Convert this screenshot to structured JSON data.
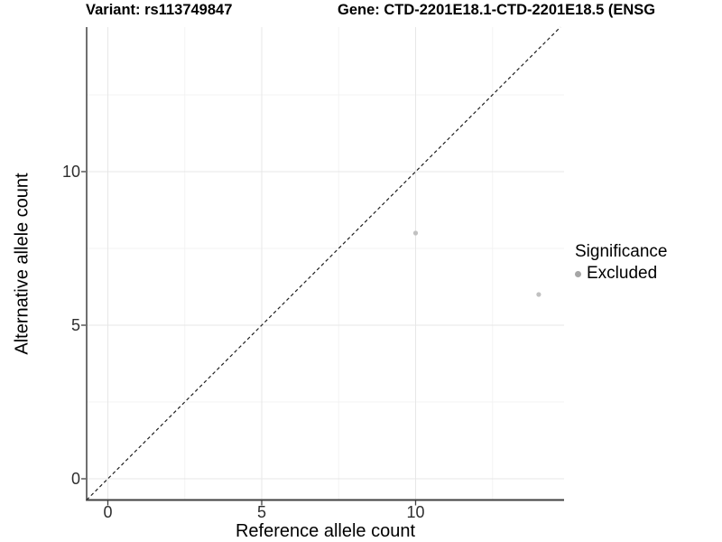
{
  "chart_data": {
    "type": "scatter",
    "title_left": "Variant: rs113749847",
    "title_right": "Gene: CTD-2201E18.1-CTD-2201E18.5 (ENSG",
    "xlabel": "Reference allele count",
    "ylabel": "Alternative allele count",
    "x_ticks": [
      0,
      5,
      10
    ],
    "y_ticks": [
      0,
      5,
      10
    ],
    "xlim": [
      -0.7,
      14.85
    ],
    "ylim": [
      -0.7,
      14.7
    ],
    "grid": {
      "on": true,
      "major": [
        0,
        5,
        10
      ],
      "minor": [
        2.5,
        7.5,
        12.5
      ]
    },
    "reference_line": {
      "type": "identity",
      "slope": 1,
      "intercept": 0,
      "style": "dashed"
    },
    "legend_position": "right",
    "series": [
      {
        "name": "Excluded",
        "points": [
          {
            "x": 10,
            "y": 8
          },
          {
            "x": 14,
            "y": 6
          }
        ]
      }
    ]
  },
  "legend": {
    "title": "Significance",
    "entries": [
      {
        "label": "Excluded",
        "key_color": "#a6a6a6"
      }
    ]
  },
  "colors": {
    "background": "#ffffff",
    "grid_major": "#e7e7e7",
    "grid_minor": "#f3f3f3",
    "axis_line": "#404040",
    "tick_label": "#2e2e2e",
    "point": "#c1c1c1",
    "dashed_line": "#1f1f1f"
  }
}
